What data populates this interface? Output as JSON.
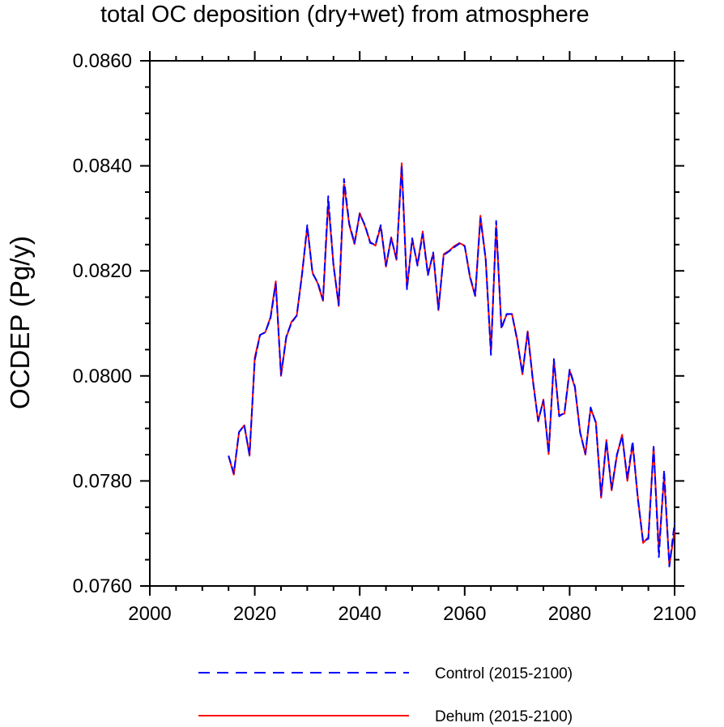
{
  "chart_data": {
    "type": "line",
    "title": "total OC deposition (dry+wet) from atmosphere",
    "xlabel": "",
    "ylabel": "OCDEP  (Pg/y)",
    "xlim": [
      2000,
      2100
    ],
    "ylim": [
      0.076,
      0.086
    ],
    "xticks": [
      2000,
      2020,
      2040,
      2060,
      2080,
      2100
    ],
    "xtick_labels": [
      "2000",
      "2020",
      "2040",
      "2060",
      "2080",
      "2100"
    ],
    "yticks": [
      0.076,
      0.078,
      0.08,
      0.082,
      0.084,
      0.086
    ],
    "ytick_labels": [
      "0.0760",
      "0.0780",
      "0.0800",
      "0.0820",
      "0.0840",
      "0.0860"
    ],
    "x": [
      2015,
      2016,
      2017,
      2018,
      2019,
      2020,
      2021,
      2022,
      2023,
      2024,
      2025,
      2026,
      2027,
      2028,
      2029,
      2030,
      2031,
      2032,
      2033,
      2034,
      2035,
      2036,
      2037,
      2038,
      2039,
      2040,
      2041,
      2042,
      2043,
      2044,
      2045,
      2046,
      2047,
      2048,
      2049,
      2050,
      2051,
      2052,
      2053,
      2054,
      2055,
      2056,
      2057,
      2058,
      2059,
      2060,
      2061,
      2062,
      2063,
      2064,
      2065,
      2066,
      2067,
      2068,
      2069,
      2070,
      2071,
      2072,
      2073,
      2074,
      2075,
      2076,
      2077,
      2078,
      2079,
      2080,
      2081,
      2082,
      2083,
      2084,
      2085,
      2086,
      2087,
      2088,
      2089,
      2090,
      2091,
      2092,
      2093,
      2094,
      2095,
      2096,
      2097,
      2098,
      2099,
      2100
    ],
    "series": [
      {
        "name": "Control (2015-2100)",
        "color": "#0000ff",
        "dash": "dashed",
        "values": [
          0.07848,
          0.07815,
          0.07893,
          0.07906,
          0.0785,
          0.0803,
          0.08078,
          0.08083,
          0.0811,
          0.08175,
          0.08002,
          0.08075,
          0.08101,
          0.08115,
          0.08192,
          0.08287,
          0.08195,
          0.08178,
          0.08145,
          0.08342,
          0.0821,
          0.08135,
          0.08375,
          0.0829,
          0.08253,
          0.08308,
          0.08287,
          0.08253,
          0.0825,
          0.08287,
          0.0821,
          0.08262,
          0.08223,
          0.084,
          0.08165,
          0.08262,
          0.0821,
          0.0827,
          0.08192,
          0.08235,
          0.08127,
          0.0823,
          0.08237,
          0.08245,
          0.08252,
          0.08247,
          0.0819,
          0.08153,
          0.083,
          0.08223,
          0.0804,
          0.08295,
          0.0809,
          0.08118,
          0.08118,
          0.08068,
          0.08005,
          0.08083,
          0.0799,
          0.07915,
          0.07953,
          0.07853,
          0.08032,
          0.07923,
          0.0793,
          0.08012,
          0.0798,
          0.07892,
          0.07852,
          0.0794,
          0.0791,
          0.07772,
          0.07875,
          0.07785,
          0.0785,
          0.07885,
          0.07805,
          0.07875,
          0.07765,
          0.07685,
          0.0769,
          0.07865,
          0.07655,
          0.0782,
          0.07637,
          0.0772
        ]
      },
      {
        "name": "Dehum (2015-2100)",
        "color": "#ff0000",
        "dash": "solid",
        "values": [
          0.07848,
          0.07812,
          0.07893,
          0.07906,
          0.07848,
          0.08035,
          0.08078,
          0.08083,
          0.08112,
          0.0818,
          0.08,
          0.08073,
          0.08103,
          0.08115,
          0.08194,
          0.08283,
          0.08197,
          0.08176,
          0.08143,
          0.0833,
          0.08212,
          0.08133,
          0.08365,
          0.08288,
          0.08251,
          0.0831,
          0.08285,
          0.08255,
          0.08248,
          0.08285,
          0.08208,
          0.08264,
          0.08221,
          0.08405,
          0.08167,
          0.0826,
          0.08212,
          0.08275,
          0.08193,
          0.08233,
          0.08125,
          0.08232,
          0.08238,
          0.08247,
          0.08253,
          0.08248,
          0.08188,
          0.08152,
          0.08305,
          0.08222,
          0.08045,
          0.08285,
          0.08092,
          0.08117,
          0.08118,
          0.0807,
          0.08003,
          0.08085,
          0.07992,
          0.07913,
          0.07955,
          0.07851,
          0.0803,
          0.07925,
          0.07928,
          0.0801,
          0.07978,
          0.07893,
          0.0785,
          0.07938,
          0.07912,
          0.07768,
          0.07878,
          0.07782,
          0.07848,
          0.07888,
          0.078,
          0.0787,
          0.07768,
          0.07682,
          0.07693,
          0.07865,
          0.07668,
          0.07808,
          0.0764,
          0.07705
        ]
      }
    ],
    "legend": {
      "position": "bottom",
      "entries": [
        "Control (2015-2100)",
        "Dehum (2015-2100)"
      ]
    },
    "grid": false
  }
}
